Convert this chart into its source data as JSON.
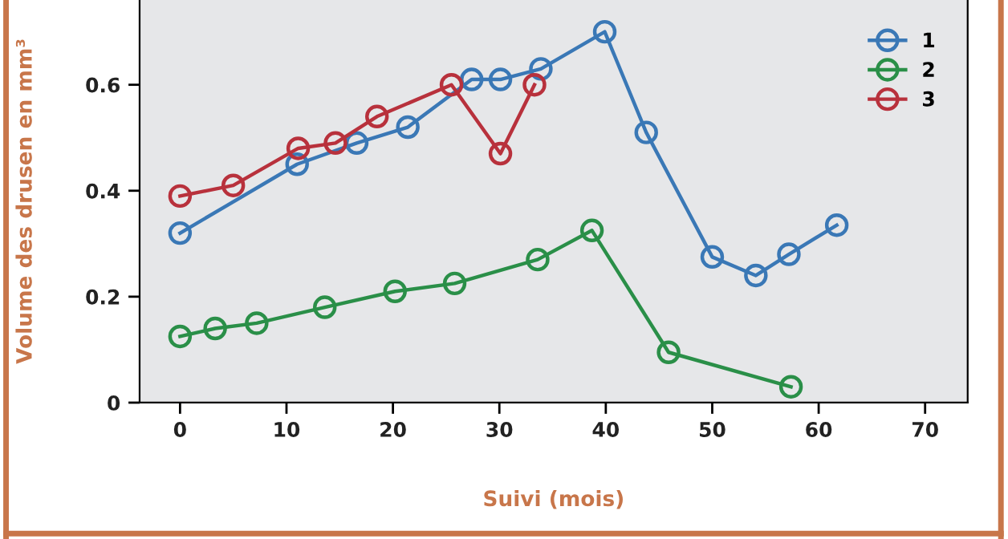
{
  "chart_data": {
    "type": "line",
    "xlabel": "Suivi (mois)",
    "ylabel": "Volume des drusen en mm³",
    "xlim": [
      -3.8,
      74
    ],
    "xticks": [
      0,
      10,
      20,
      30,
      40,
      50,
      60,
      70
    ],
    "ylim": [
      0,
      0.76
    ],
    "yticks": [
      0,
      0.2,
      0.4,
      0.6
    ],
    "marker": "circle",
    "line_style": "solid",
    "grid": false,
    "legend": "top right",
    "series": [
      {
        "name": "1",
        "color": "#3a78b6",
        "x": [
          0,
          11,
          16.6,
          21.4,
          27.4,
          30.1,
          33.9,
          39.9,
          43.8,
          50,
          54.1,
          57.2,
          61.7
        ],
        "values": [
          0.32,
          0.45,
          0.49,
          0.52,
          0.61,
          0.61,
          0.63,
          0.7,
          0.51,
          0.275,
          0.24,
          0.28,
          0.335
        ]
      },
      {
        "name": "2",
        "color": "#2a8f48",
        "x": [
          0,
          3.3,
          7.2,
          13.6,
          20.2,
          25.8,
          33.6,
          38.7,
          45.9,
          57.4
        ],
        "values": [
          0.125,
          0.14,
          0.15,
          0.18,
          0.21,
          0.225,
          0.27,
          0.325,
          0.095,
          0.03
        ]
      },
      {
        "name": "3",
        "color": "#b8313c",
        "x": [
          0,
          5,
          11.1,
          14.6,
          18.5,
          25.5,
          30.1,
          33.3
        ],
        "values": [
          0.39,
          0.41,
          0.48,
          0.49,
          0.54,
          0.6,
          0.47,
          0.6
        ]
      }
    ]
  }
}
